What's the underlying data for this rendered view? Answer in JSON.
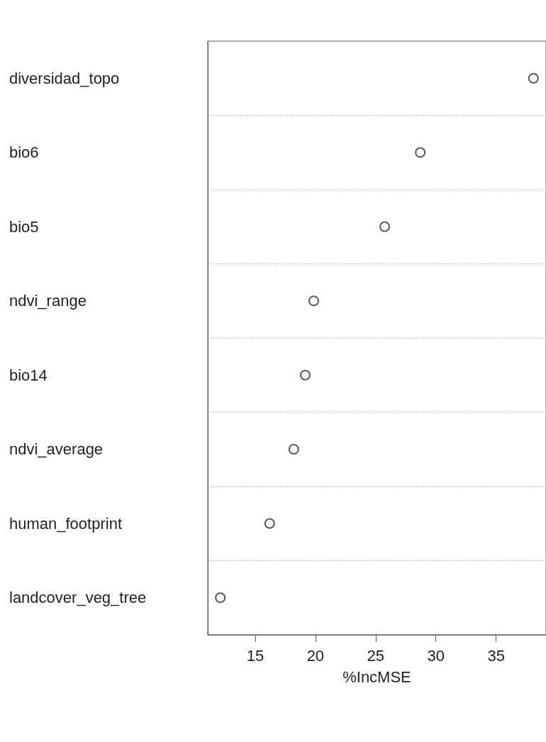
{
  "chart_data": {
    "type": "scatter",
    "orientation": "horizontal",
    "categories": [
      "diversidad_topo",
      "bio6",
      "bio5",
      "ndvi_range",
      "bio14",
      "ndvi_average",
      "human_footprint",
      "landcover_veg_tree"
    ],
    "values": [
      38.1,
      28.7,
      25.75,
      19.86,
      19.15,
      18.2,
      16.2,
      12.1
    ],
    "color": "#333333",
    "marker": "circle",
    "xlabel": "%IncMSE",
    "xlim": [
      11.06,
      39.14
    ],
    "xticks": [
      15,
      20,
      25,
      30,
      35
    ],
    "grid": "y"
  }
}
